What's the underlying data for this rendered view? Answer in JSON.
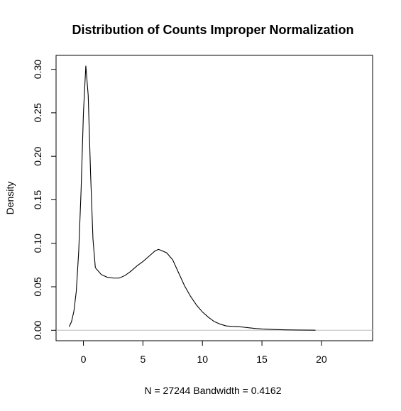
{
  "chart_data": {
    "type": "line",
    "title": "Distribution of Counts Improper Normalization",
    "xlabel": "N = 27244   Bandwidth = 0.4162",
    "ylabel": "Density",
    "xlim": [
      -2.3,
      24.3
    ],
    "ylim": [
      -0.012,
      0.316
    ],
    "x_ticks": [
      0,
      5,
      10,
      15,
      20
    ],
    "x_tick_labels": [
      "0",
      "5",
      "10",
      "15",
      "20"
    ],
    "y_ticks": [
      0.0,
      0.05,
      0.1,
      0.15,
      0.2,
      0.25,
      0.3
    ],
    "y_tick_labels": [
      "0.00",
      "0.05",
      "0.10",
      "0.15",
      "0.20",
      "0.25",
      "0.30"
    ],
    "grid": false,
    "zero_line": true,
    "series": [
      {
        "x": [
          -1.2,
          -1.0,
          -0.8,
          -0.6,
          -0.4,
          -0.2,
          0.0,
          0.2,
          0.4,
          0.6,
          0.8,
          1.0,
          1.5,
          2.0,
          2.5,
          3.0,
          3.5,
          4.0,
          4.5,
          5.0,
          5.5,
          6.0,
          6.3,
          6.5,
          7.0,
          7.5,
          8.0,
          8.5,
          9.0,
          9.5,
          10.0,
          10.5,
          11.0,
          11.5,
          12.0,
          12.5,
          13.0,
          13.5,
          14.0,
          14.5,
          15.0,
          15.5,
          16.0,
          17.0,
          18.0,
          19.0,
          19.5
        ],
        "y": [
          0.004,
          0.01,
          0.022,
          0.045,
          0.09,
          0.16,
          0.25,
          0.304,
          0.27,
          0.18,
          0.105,
          0.072,
          0.064,
          0.061,
          0.06,
          0.06,
          0.063,
          0.068,
          0.074,
          0.079,
          0.085,
          0.091,
          0.093,
          0.092,
          0.089,
          0.081,
          0.066,
          0.051,
          0.039,
          0.029,
          0.021,
          0.015,
          0.01,
          0.007,
          0.005,
          0.0045,
          0.0042,
          0.0035,
          0.0027,
          0.002,
          0.0015,
          0.0012,
          0.0009,
          0.0005,
          0.0003,
          0.0002,
          0.0001
        ]
      }
    ]
  }
}
